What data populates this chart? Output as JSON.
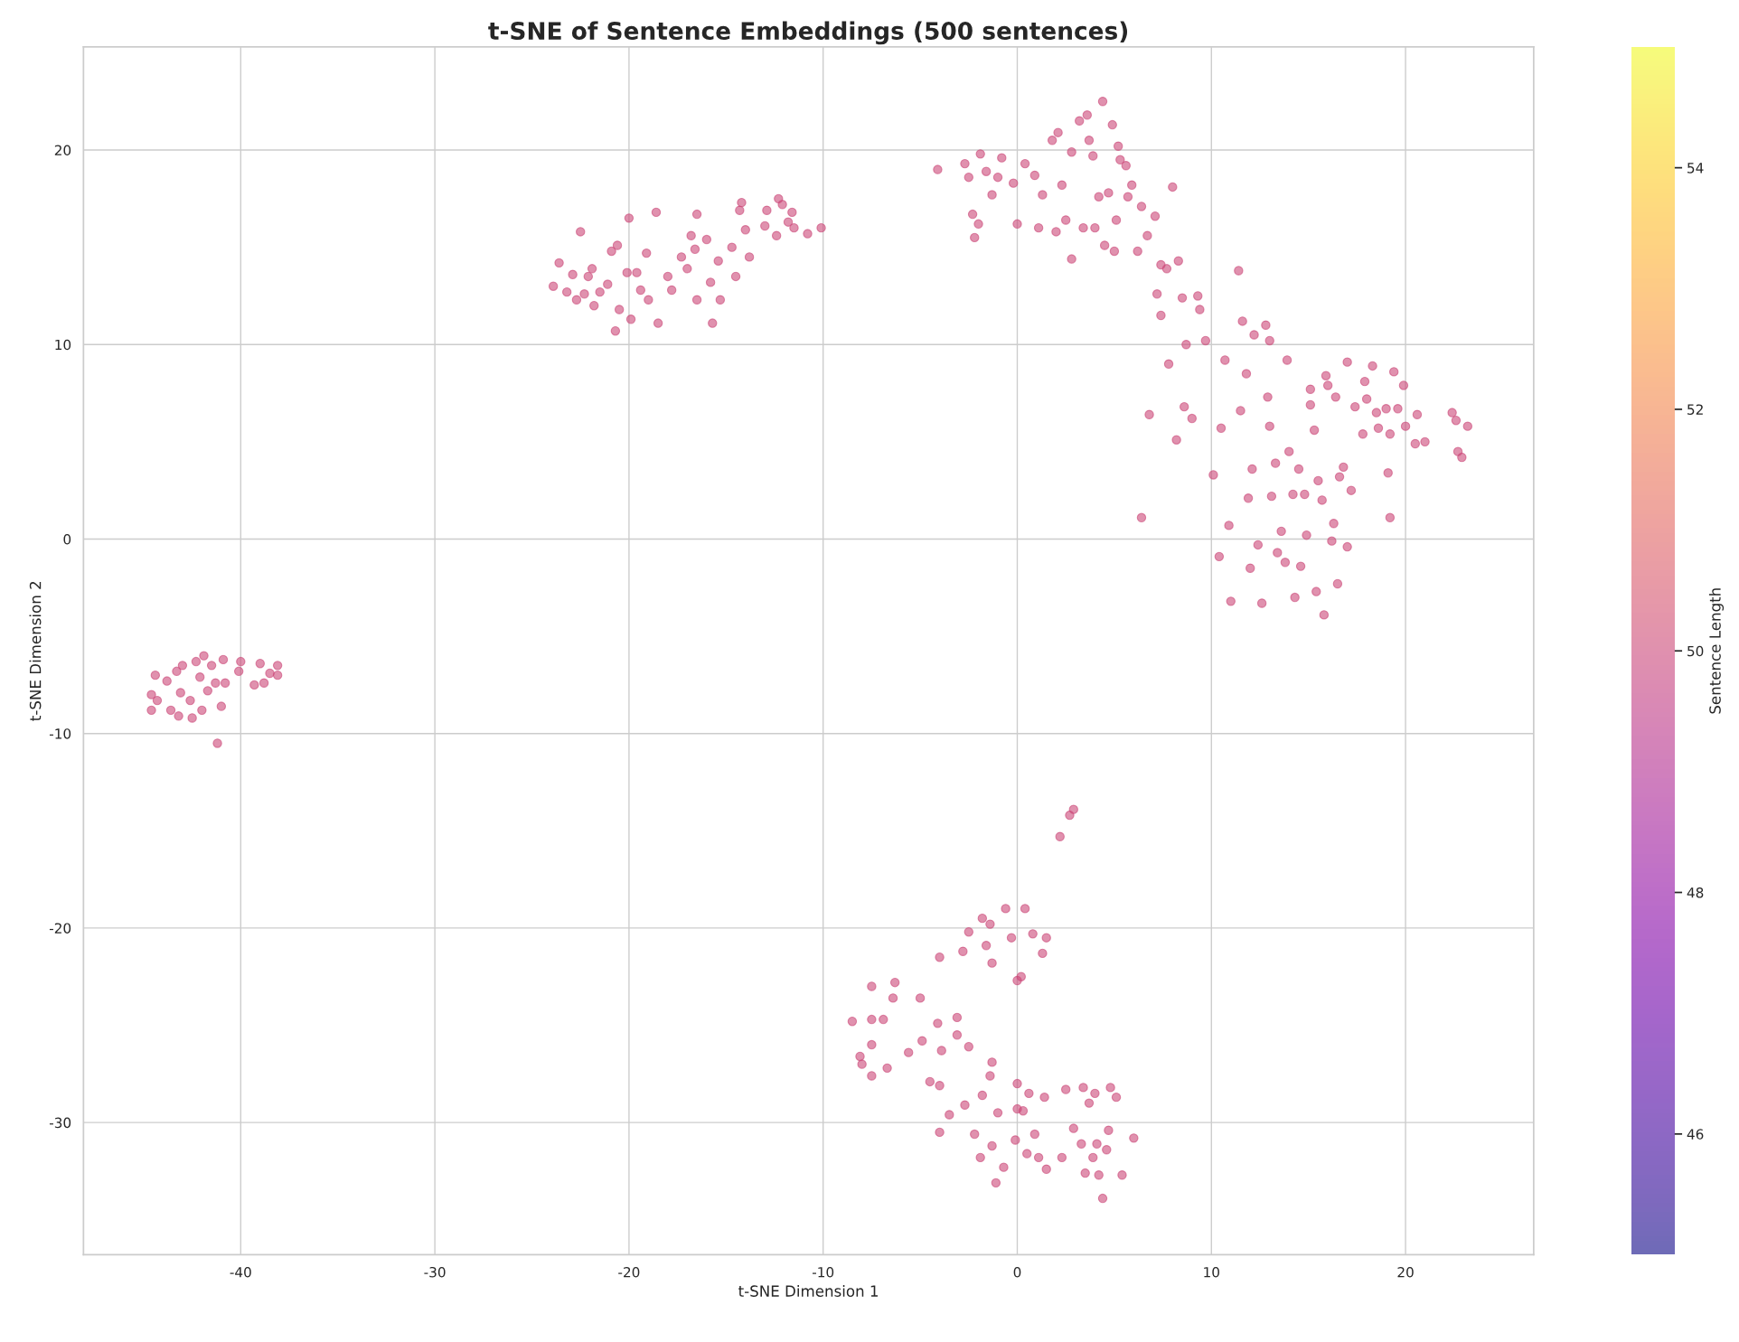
{
  "chart_data": {
    "type": "scatter",
    "title": "t-SNE of Sentence Embeddings (500 sentences)",
    "xlabel": "t-SNE Dimension 1",
    "ylabel": "t-SNE Dimension 2",
    "clabel": "Sentence Length",
    "xlim": [
      -48.1,
      26.6
    ],
    "ylim": [
      -36.8,
      25.3
    ],
    "xticks": [
      -40,
      -30,
      -20,
      -10,
      0,
      10,
      20
    ],
    "yticks": [
      -30,
      -20,
      -10,
      0,
      10,
      20
    ],
    "clim": [
      45,
      55
    ],
    "cticks": [
      46,
      48,
      50,
      52,
      54
    ],
    "grid": true,
    "marker": "circle",
    "x": [
      -44.6,
      -44.6,
      -44.4,
      -44.3,
      -43.8,
      -43.6,
      -43.3,
      -43.2,
      -43.1,
      -43.0,
      -42.6,
      -42.5,
      -42.3,
      -42.1,
      -42.0,
      -41.9,
      -41.7,
      -41.5,
      -41.3,
      -41.2,
      -41.0,
      -40.9,
      -40.8,
      -40.0,
      -40.1,
      -39.3,
      -39.0,
      -38.8,
      -38.5,
      -38.1,
      -38.1,
      -23.9,
      -23.6,
      -23.2,
      -22.9,
      -22.7,
      -22.5,
      -22.3,
      -22.1,
      -21.9,
      -21.8,
      -21.5,
      -21.1,
      -20.9,
      -20.7,
      -20.6,
      -20.5,
      -20.1,
      -20.0,
      -19.9,
      -19.6,
      -19.4,
      -19.1,
      -19.0,
      -18.6,
      -18.5,
      -18.0,
      -17.8,
      -17.3,
      -17.0,
      -16.8,
      -16.6,
      -16.5,
      -16.5,
      -16.0,
      -15.8,
      -15.7,
      -15.4,
      -15.3,
      -14.7,
      -14.5,
      -14.3,
      -14.2,
      -14.0,
      -13.8,
      -13.0,
      -12.9,
      -12.4,
      -12.3,
      -12.1,
      -11.8,
      -11.6,
      -11.5,
      -10.8,
      -10.1,
      -4.1,
      -2.7,
      -2.5,
      -2.3,
      -2.2,
      -2.0,
      -1.9,
      -1.6,
      -1.3,
      -1.0,
      -0.8,
      -0.2,
      0.0,
      0.4,
      0.9,
      1.1,
      1.3,
      1.8,
      2.0,
      2.1,
      2.3,
      2.5,
      2.8,
      2.8,
      3.2,
      3.4,
      3.6,
      3.7,
      3.9,
      4.0,
      4.2,
      4.4,
      4.5,
      4.7,
      4.9,
      5.0,
      5.1,
      5.2,
      5.3,
      5.6,
      5.7,
      5.9,
      6.2,
      6.4,
      6.7,
      7.1,
      7.2,
      7.4,
      7.4,
      7.7,
      7.8,
      8.0,
      8.3,
      8.5,
      8.6,
      8.7,
      9.0,
      9.3,
      9.4,
      9.7,
      8.2,
      6.4,
      6.8,
      10.1,
      10.4,
      10.5,
      10.7,
      10.9,
      11.0,
      11.4,
      11.5,
      11.6,
      11.8,
      11.9,
      12.0,
      12.1,
      12.2,
      12.4,
      12.6,
      12.8,
      12.9,
      13.0,
      13.0,
      13.1,
      13.3,
      13.4,
      13.6,
      13.8,
      13.9,
      14.0,
      14.2,
      14.3,
      14.5,
      14.6,
      14.8,
      14.9,
      15.1,
      15.1,
      15.3,
      15.4,
      15.5,
      15.7,
      15.8,
      15.9,
      16.0,
      16.2,
      16.3,
      16.4,
      16.5,
      16.6,
      16.8,
      17.0,
      17.0,
      17.2,
      17.4,
      17.8,
      17.9,
      18.0,
      18.3,
      18.5,
      18.6,
      19.0,
      19.1,
      19.2,
      19.2,
      19.4,
      19.6,
      19.9,
      20.0,
      20.5,
      20.6,
      21.0,
      22.4,
      22.6,
      22.7,
      22.9,
      23.2,
      2.2,
      2.7,
      2.9,
      -0.6,
      0.4,
      -1.8,
      -1.4,
      -2.5,
      -0.3,
      0.8,
      1.5,
      -1.6,
      -2.8,
      -1.3,
      -4.0,
      1.3,
      0.0,
      0.2,
      -6.3,
      -6.4,
      -7.5,
      -5.0,
      -6.9,
      -7.5,
      -8.5,
      -4.1,
      -3.1,
      -5.6,
      -7.5,
      -4.9,
      -3.1,
      -2.5,
      -3.9,
      -8.1,
      -8.0,
      -7.5,
      -6.7,
      -4.5,
      -4.0,
      -1.3,
      -1.4,
      -1.8,
      0.0,
      0.6,
      1.4,
      2.5,
      3.4,
      3.7,
      4.0,
      4.8,
      5.1,
      -2.7,
      -3.5,
      -1.0,
      0.0,
      0.3,
      -4.0,
      -2.2,
      -1.3,
      -0.1,
      0.9,
      2.9,
      3.3,
      4.1,
      4.7,
      6.0,
      -1.9,
      -0.7,
      0.5,
      1.1,
      2.3,
      3.9,
      4.6,
      -1.1,
      1.5,
      3.5,
      4.2,
      5.4,
      4.4
    ],
    "values": [
      -8.0,
      -8.8,
      -7.0,
      -8.3,
      -7.3,
      -8.8,
      -6.8,
      -9.1,
      -7.9,
      -6.5,
      -8.3,
      -9.2,
      -6.3,
      -7.1,
      -8.8,
      -6.0,
      -7.8,
      -6.5,
      -7.4,
      -10.5,
      -8.6,
      -6.2,
      -7.4,
      -6.3,
      -6.8,
      -7.5,
      -6.4,
      -7.4,
      -6.9,
      -6.5,
      -7.0,
      13.0,
      14.2,
      12.7,
      13.6,
      12.3,
      15.8,
      12.6,
      13.5,
      13.9,
      12.0,
      12.7,
      13.1,
      14.8,
      10.7,
      15.1,
      11.8,
      13.7,
      16.5,
      11.3,
      13.7,
      12.8,
      14.7,
      12.3,
      16.8,
      11.1,
      13.5,
      12.8,
      14.5,
      13.9,
      15.6,
      14.9,
      16.7,
      12.3,
      15.4,
      13.2,
      11.1,
      14.3,
      12.3,
      15.0,
      13.5,
      16.9,
      17.3,
      15.9,
      14.5,
      16.1,
      16.9,
      15.6,
      17.5,
      17.2,
      16.3,
      16.8,
      16.0,
      15.7,
      16.0,
      19.0,
      19.3,
      18.6,
      16.7,
      15.5,
      16.2,
      19.8,
      18.9,
      17.7,
      18.6,
      19.6,
      18.3,
      16.2,
      19.3,
      18.7,
      16.0,
      17.7,
      20.5,
      15.8,
      20.9,
      18.2,
      16.4,
      14.4,
      19.9,
      21.5,
      16.0,
      21.8,
      20.5,
      19.7,
      16.0,
      17.6,
      22.5,
      15.1,
      17.8,
      21.3,
      14.8,
      16.4,
      20.2,
      19.5,
      19.2,
      17.6,
      18.2,
      14.8,
      17.1,
      15.6,
      16.6,
      12.6,
      14.1,
      11.5,
      13.9,
      9.0,
      18.1,
      14.3,
      12.4,
      6.8,
      10.0,
      6.2,
      12.5,
      11.8,
      10.2,
      5.1,
      1.1,
      6.4,
      3.3,
      -0.9,
      5.7,
      9.2,
      0.7,
      -3.2,
      13.8,
      6.6,
      11.2,
      8.5,
      2.1,
      -1.5,
      3.6,
      10.5,
      -0.3,
      -3.3,
      11.0,
      7.3,
      5.8,
      10.2,
      2.2,
      3.9,
      -0.7,
      0.4,
      -1.2,
      9.2,
      4.5,
      2.3,
      -3.0,
      3.6,
      -1.4,
      2.3,
      0.2,
      6.9,
      7.7,
      5.6,
      -2.7,
      3.0,
      2.0,
      -3.9,
      8.4,
      7.9,
      -0.1,
      0.8,
      7.3,
      -2.3,
      3.2,
      3.7,
      9.1,
      -0.4,
      2.5,
      6.8,
      5.4,
      8.1,
      7.2,
      8.9,
      6.5,
      5.7,
      6.7,
      3.4,
      5.4,
      1.1,
      8.6,
      6.7,
      7.9,
      5.8,
      4.9,
      6.4,
      5.0,
      6.5,
      6.1,
      4.5,
      4.2,
      5.8,
      -15.3,
      -14.2,
      -13.9,
      -19.0,
      -19.0,
      -19.5,
      -19.8,
      -20.2,
      -20.5,
      -20.3,
      -20.5,
      -20.9,
      -21.2,
      -21.8,
      -21.5,
      -21.3,
      -22.7,
      -22.5,
      -22.8,
      -23.6,
      -23.0,
      -23.6,
      -24.7,
      -24.7,
      -24.8,
      -24.9,
      -24.6,
      -26.4,
      -26.0,
      -25.8,
      -25.5,
      -26.1,
      -26.3,
      -26.6,
      -27.0,
      -27.6,
      -27.2,
      -27.9,
      -28.1,
      -26.9,
      -27.6,
      -28.6,
      -28.0,
      -28.5,
      -28.7,
      -28.3,
      -28.2,
      -29.0,
      -28.5,
      -28.2,
      -28.7,
      -29.1,
      -29.6,
      -29.5,
      -29.3,
      -29.4,
      -30.5,
      -30.6,
      -31.2,
      -30.9,
      -30.6,
      -30.3,
      -31.1,
      -31.1,
      -30.4,
      -30.8,
      -31.8,
      -32.3,
      -31.6,
      -31.8,
      -31.8,
      -31.8,
      -31.4,
      -33.1,
      -32.4,
      -32.6,
      -32.7,
      -32.7,
      -33.9
    ]
  }
}
